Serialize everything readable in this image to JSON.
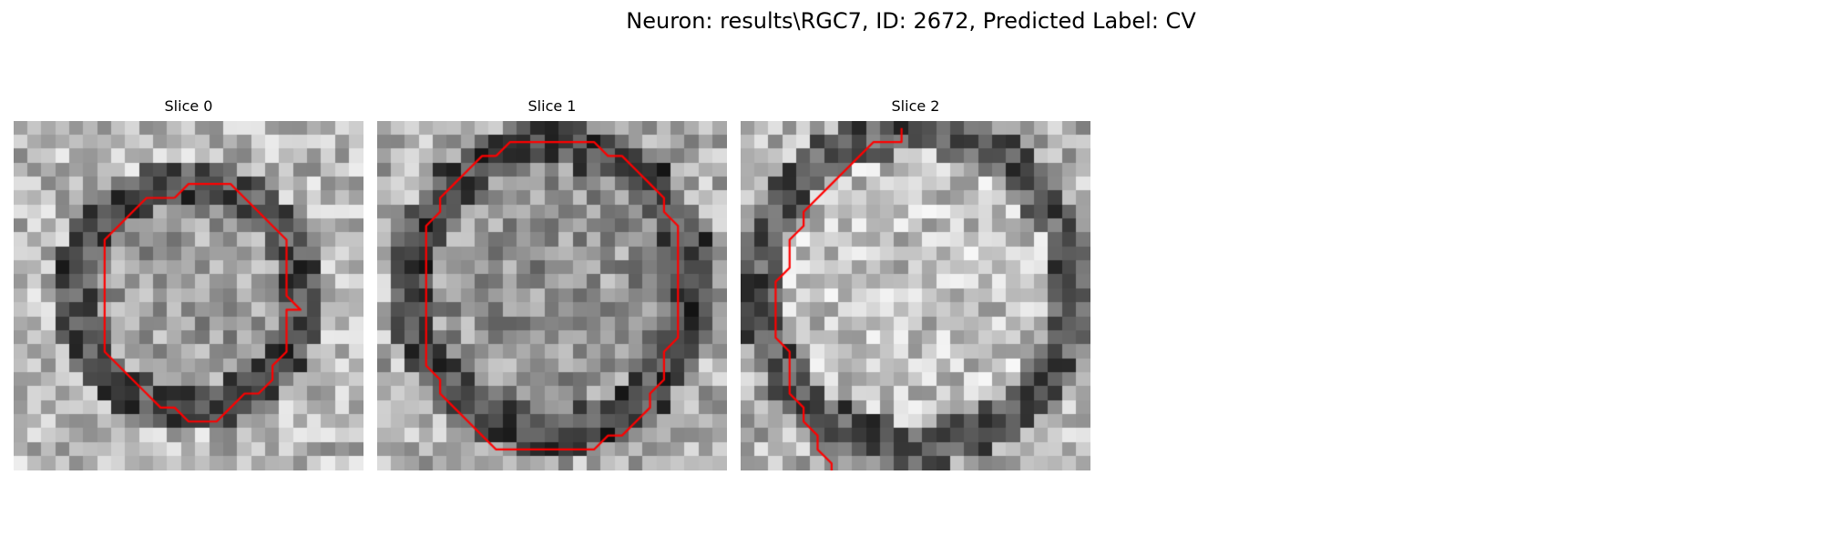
{
  "figure": {
    "title": "Neuron: results\\RGC7, ID: 2672, Predicted Label: CV"
  },
  "panels": [
    {
      "title": "Slice 0",
      "contour": [
        [
          11,
          5
        ],
        [
          12,
          4
        ],
        [
          13,
          4
        ],
        [
          14,
          4
        ],
        [
          15,
          4
        ],
        [
          16,
          5
        ],
        [
          17,
          6
        ],
        [
          18,
          7
        ],
        [
          19,
          8
        ],
        [
          19,
          9
        ],
        [
          19,
          10
        ],
        [
          19,
          11
        ],
        [
          19,
          12
        ],
        [
          20,
          13
        ],
        [
          19,
          13
        ],
        [
          19,
          14
        ],
        [
          19,
          15
        ],
        [
          19,
          16
        ],
        [
          18,
          17
        ],
        [
          18,
          18
        ],
        [
          17,
          19
        ],
        [
          16,
          19
        ],
        [
          15,
          20
        ],
        [
          14,
          21
        ],
        [
          13,
          21
        ],
        [
          12,
          21
        ],
        [
          11,
          20
        ],
        [
          10,
          20
        ],
        [
          9,
          19
        ],
        [
          8,
          18
        ],
        [
          7,
          17
        ],
        [
          6,
          16
        ],
        [
          6,
          15
        ],
        [
          6,
          14
        ],
        [
          6,
          13
        ],
        [
          6,
          12
        ],
        [
          6,
          11
        ],
        [
          6,
          10
        ],
        [
          6,
          9
        ],
        [
          6,
          8
        ],
        [
          7,
          7
        ],
        [
          8,
          6
        ],
        [
          9,
          5
        ],
        [
          10,
          5
        ],
        [
          11,
          5
        ]
      ]
    },
    {
      "title": "Slice 1",
      "contour": [
        [
          8,
          2
        ],
        [
          9,
          1
        ],
        [
          10,
          1
        ],
        [
          11,
          1
        ],
        [
          12,
          1
        ],
        [
          13,
          1
        ],
        [
          14,
          1
        ],
        [
          15,
          1
        ],
        [
          16,
          2
        ],
        [
          17,
          2
        ],
        [
          18,
          3
        ],
        [
          19,
          4
        ],
        [
          20,
          5
        ],
        [
          20,
          6
        ],
        [
          21,
          7
        ],
        [
          21,
          8
        ],
        [
          21,
          9
        ],
        [
          21,
          10
        ],
        [
          21,
          11
        ],
        [
          21,
          12
        ],
        [
          21,
          13
        ],
        [
          21,
          14
        ],
        [
          21,
          15
        ],
        [
          20,
          16
        ],
        [
          20,
          17
        ],
        [
          20,
          18
        ],
        [
          19,
          19
        ],
        [
          19,
          20
        ],
        [
          18,
          21
        ],
        [
          17,
          22
        ],
        [
          16,
          22
        ],
        [
          15,
          23
        ],
        [
          14,
          23
        ],
        [
          13,
          23
        ],
        [
          12,
          23
        ],
        [
          11,
          23
        ],
        [
          10,
          23
        ],
        [
          9,
          23
        ],
        [
          8,
          23
        ],
        [
          7,
          22
        ],
        [
          6,
          21
        ],
        [
          5,
          20
        ],
        [
          4,
          19
        ],
        [
          4,
          18
        ],
        [
          3,
          17
        ],
        [
          3,
          16
        ],
        [
          3,
          15
        ],
        [
          3,
          14
        ],
        [
          3,
          13
        ],
        [
          3,
          12
        ],
        [
          3,
          11
        ],
        [
          3,
          10
        ],
        [
          3,
          9
        ],
        [
          3,
          8
        ],
        [
          3,
          7
        ],
        [
          4,
          6
        ],
        [
          4,
          5
        ],
        [
          5,
          4
        ],
        [
          6,
          3
        ],
        [
          7,
          2
        ],
        [
          8,
          2
        ]
      ]
    },
    {
      "title": "Slice 2",
      "contour": [
        [
          11,
          0
        ],
        [
          11,
          1
        ],
        [
          10,
          1
        ],
        [
          9,
          1
        ],
        [
          8,
          2
        ],
        [
          7,
          3
        ],
        [
          6,
          4
        ],
        [
          5,
          5
        ],
        [
          4,
          6
        ],
        [
          4,
          7
        ],
        [
          3,
          8
        ],
        [
          3,
          9
        ],
        [
          3,
          10
        ],
        [
          2,
          11
        ],
        [
          2,
          12
        ],
        [
          2,
          13
        ],
        [
          2,
          14
        ],
        [
          2,
          15
        ],
        [
          3,
          16
        ],
        [
          3,
          17
        ],
        [
          3,
          18
        ],
        [
          3,
          19
        ],
        [
          4,
          20
        ],
        [
          4,
          21
        ],
        [
          5,
          22
        ],
        [
          5,
          23
        ],
        [
          6,
          24
        ],
        [
          6,
          25
        ]
      ]
    }
  ]
}
